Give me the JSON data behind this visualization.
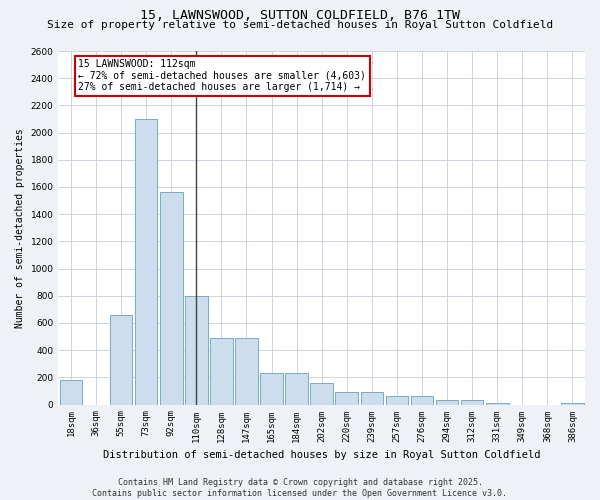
{
  "title": "15, LAWNSWOOD, SUTTON COLDFIELD, B76 1TW",
  "subtitle": "Size of property relative to semi-detached houses in Royal Sutton Coldfield",
  "xlabel": "Distribution of semi-detached houses by size in Royal Sutton Coldfield",
  "ylabel": "Number of semi-detached properties",
  "categories": [
    "18sqm",
    "36sqm",
    "55sqm",
    "73sqm",
    "92sqm",
    "110sqm",
    "128sqm",
    "147sqm",
    "165sqm",
    "184sqm",
    "202sqm",
    "220sqm",
    "239sqm",
    "257sqm",
    "276sqm",
    "294sqm",
    "312sqm",
    "331sqm",
    "349sqm",
    "368sqm",
    "386sqm"
  ],
  "values": [
    180,
    0,
    660,
    2100,
    1560,
    800,
    490,
    490,
    230,
    230,
    155,
    90,
    90,
    60,
    60,
    30,
    30,
    10,
    0,
    0,
    10
  ],
  "bar_color": "#ccdded",
  "bar_edge_color": "#7aaac8",
  "vline_x_index": 5,
  "vline_color": "#444444",
  "property_label": "15 LAWNSWOOD: 112sqm",
  "annotation_line1": "← 72% of semi-detached houses are smaller (4,603)",
  "annotation_line2": "27% of semi-detached houses are larger (1,714) →",
  "annotation_box_facecolor": "#ffffff",
  "annotation_box_edgecolor": "#cc0000",
  "ylim": [
    0,
    2600
  ],
  "yticks": [
    0,
    200,
    400,
    600,
    800,
    1000,
    1200,
    1400,
    1600,
    1800,
    2000,
    2200,
    2400,
    2600
  ],
  "footer_line1": "Contains HM Land Registry data © Crown copyright and database right 2025.",
  "footer_line2": "Contains public sector information licensed under the Open Government Licence v3.0.",
  "bg_color": "#eef2f7",
  "plot_bg_color": "#ffffff",
  "grid_color": "#c5cdd8",
  "title_fontsize": 9.5,
  "subtitle_fontsize": 8,
  "xlabel_fontsize": 7.5,
  "ylabel_fontsize": 7,
  "tick_fontsize": 6.5,
  "annotation_fontsize": 7,
  "footer_fontsize": 6
}
